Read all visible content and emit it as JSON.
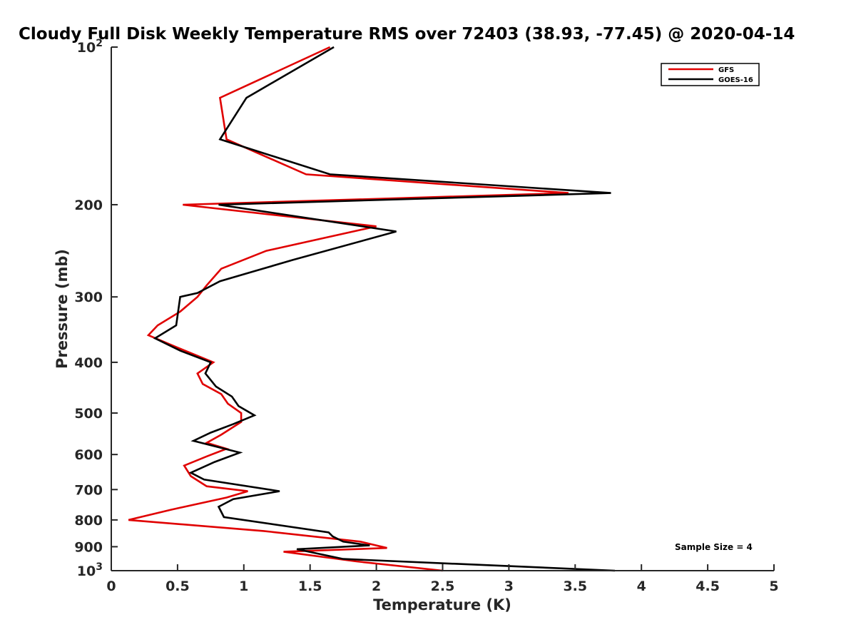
{
  "chart_data": {
    "type": "line",
    "title": "Cloudy Full Disk Weekly Temperature RMS over 72403 (38.93, -77.45) @ 2020-04-14",
    "xlabel": "Temperature (K)",
    "ylabel": "Pressure (mb)",
    "xlim": [
      0,
      5
    ],
    "ylim": [
      100,
      1000
    ],
    "yscale": "log",
    "yreversed": true,
    "grid": false,
    "legend_position": "top-right",
    "x_ticks": [
      "0",
      "0.5",
      "1",
      "1.5",
      "2",
      "2.5",
      "3",
      "3.5",
      "4",
      "4.5",
      "5"
    ],
    "y_ticks": [
      {
        "value": 100,
        "base": "10",
        "exp": "2"
      },
      {
        "value": 200,
        "label": "200"
      },
      {
        "value": 300,
        "label": "300"
      },
      {
        "value": 400,
        "label": "400"
      },
      {
        "value": 500,
        "label": "500"
      },
      {
        "value": 600,
        "label": "600"
      },
      {
        "value": 700,
        "label": "700"
      },
      {
        "value": 800,
        "label": "800"
      },
      {
        "value": 900,
        "label": "900"
      },
      {
        "value": 1000,
        "base": "10",
        "exp": "3"
      }
    ],
    "annotation": "Sample Size = 4",
    "series": [
      {
        "name": "GFS",
        "color": "#e00000",
        "points": [
          [
            1.65,
            100
          ],
          [
            0.82,
            125
          ],
          [
            0.87,
            150
          ],
          [
            1.47,
            175
          ],
          [
            3.45,
            190
          ],
          [
            0.54,
            200
          ],
          [
            2.0,
            220
          ],
          [
            1.17,
            245
          ],
          [
            0.83,
            265
          ],
          [
            0.72,
            285
          ],
          [
            0.65,
            300
          ],
          [
            0.52,
            320
          ],
          [
            0.35,
            340
          ],
          [
            0.28,
            355
          ],
          [
            0.5,
            375
          ],
          [
            0.77,
            400
          ],
          [
            0.65,
            420
          ],
          [
            0.69,
            440
          ],
          [
            0.83,
            460
          ],
          [
            0.88,
            480
          ],
          [
            0.98,
            500
          ],
          [
            0.98,
            520
          ],
          [
            0.83,
            550
          ],
          [
            0.72,
            570
          ],
          [
            0.87,
            585
          ],
          [
            0.72,
            605
          ],
          [
            0.55,
            630
          ],
          [
            0.6,
            660
          ],
          [
            0.72,
            690
          ],
          [
            1.03,
            705
          ],
          [
            0.87,
            725
          ],
          [
            0.45,
            765
          ],
          [
            0.13,
            800
          ],
          [
            1.15,
            840
          ],
          [
            1.88,
            880
          ],
          [
            2.08,
            905
          ],
          [
            1.3,
            920
          ],
          [
            1.85,
            960
          ],
          [
            2.5,
            1000
          ]
        ]
      },
      {
        "name": "GOES-16",
        "color": "#000000",
        "points": [
          [
            1.68,
            100
          ],
          [
            1.02,
            125
          ],
          [
            0.82,
            150
          ],
          [
            1.65,
            175
          ],
          [
            3.77,
            190
          ],
          [
            0.81,
            200
          ],
          [
            2.15,
            225
          ],
          [
            1.37,
            255
          ],
          [
            0.82,
            280
          ],
          [
            0.65,
            295
          ],
          [
            0.52,
            300
          ],
          [
            0.49,
            340
          ],
          [
            0.33,
            360
          ],
          [
            0.52,
            380
          ],
          [
            0.75,
            400
          ],
          [
            0.71,
            420
          ],
          [
            0.79,
            445
          ],
          [
            0.91,
            465
          ],
          [
            0.96,
            485
          ],
          [
            1.08,
            505
          ],
          [
            0.92,
            525
          ],
          [
            0.75,
            545
          ],
          [
            0.62,
            565
          ],
          [
            0.97,
            595
          ],
          [
            0.78,
            620
          ],
          [
            0.6,
            650
          ],
          [
            0.7,
            670
          ],
          [
            1.27,
            705
          ],
          [
            0.92,
            730
          ],
          [
            0.81,
            755
          ],
          [
            0.85,
            790
          ],
          [
            1.64,
            845
          ],
          [
            1.67,
            860
          ],
          [
            1.75,
            880
          ],
          [
            1.95,
            895
          ],
          [
            1.4,
            910
          ],
          [
            1.75,
            950
          ],
          [
            3.8,
            1000
          ]
        ]
      }
    ]
  }
}
